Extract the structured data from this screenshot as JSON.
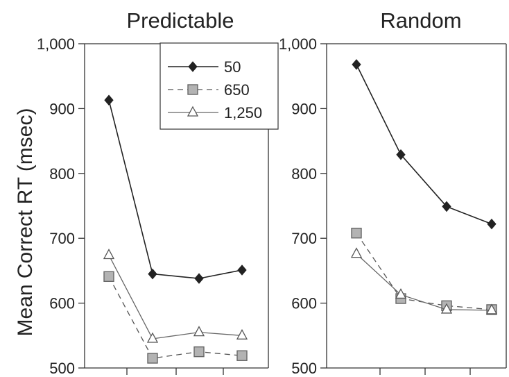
{
  "chart_data": [
    {
      "type": "line",
      "title": "Predictable",
      "ylabel": "Mean Correct RT (msec)",
      "ylim": [
        500,
        1000
      ],
      "yticks": [
        "500",
        "600",
        "700",
        "800",
        "900",
        "1,000"
      ],
      "x": [
        1,
        2,
        3,
        4
      ],
      "xticklabels": [],
      "series": [
        {
          "name": "50",
          "values": [
            913,
            645,
            638,
            651
          ],
          "color": "#222222",
          "marker": "diamond",
          "dash": "solid"
        },
        {
          "name": "650",
          "values": [
            641,
            515,
            525,
            519
          ],
          "color": "#777777",
          "marker": "square",
          "dash": "dashed"
        },
        {
          "name": "1,250",
          "values": [
            674,
            545,
            555,
            550
          ],
          "color": "#666666",
          "marker": "triangle",
          "dash": "solid"
        }
      ],
      "legend": "top-right"
    },
    {
      "type": "line",
      "title": "Random",
      "ylim": [
        500,
        1000
      ],
      "yticks": [
        "500",
        "600",
        "700",
        "800",
        "900",
        "1,000"
      ],
      "x": [
        1,
        2,
        3,
        4
      ],
      "xticklabels": [],
      "series": [
        {
          "name": "50",
          "values": [
            968,
            829,
            749,
            722
          ],
          "color": "#222222",
          "marker": "diamond",
          "dash": "solid"
        },
        {
          "name": "650",
          "values": [
            708,
            607,
            596,
            590
          ],
          "color": "#777777",
          "marker": "square",
          "dash": "dashed"
        },
        {
          "name": "1,250",
          "values": [
            676,
            613,
            590,
            589
          ],
          "color": "#666666",
          "marker": "triangle",
          "dash": "solid"
        }
      ]
    }
  ]
}
